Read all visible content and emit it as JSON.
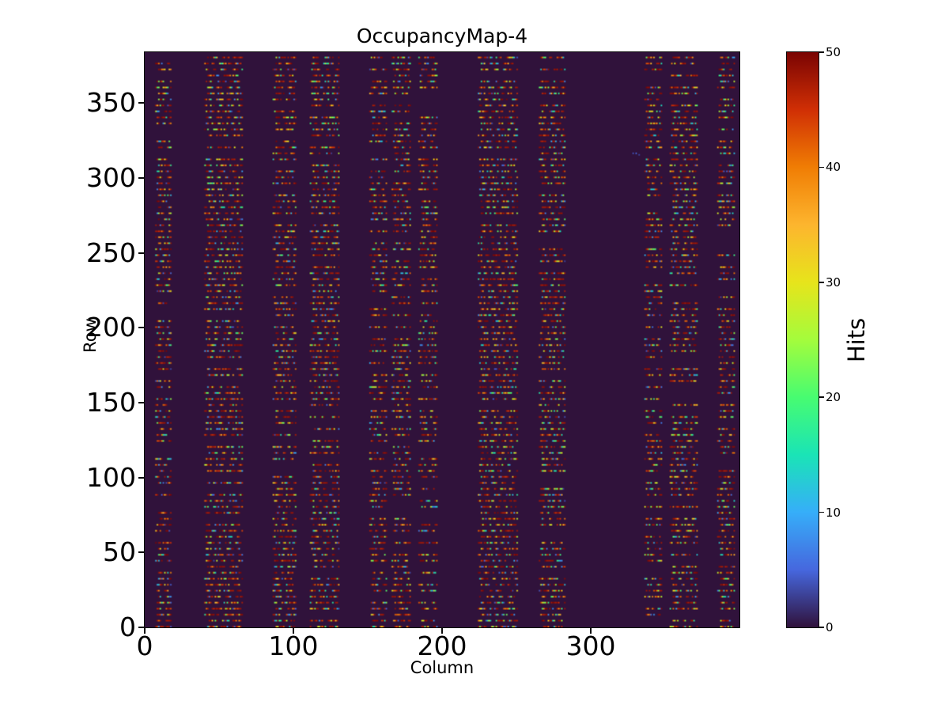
{
  "figure": {
    "background": "#ffffff"
  },
  "chart_data": {
    "type": "heatmap",
    "title": "OccupancyMap-4",
    "xlabel": "Column",
    "ylabel": "Row",
    "colorbar_label": "Hits",
    "x_range": [
      0,
      400
    ],
    "y_range": [
      0,
      384
    ],
    "value_range": [
      0,
      50
    ],
    "x_ticks": [
      0,
      100,
      200,
      300
    ],
    "y_ticks": [
      0,
      50,
      100,
      150,
      200,
      250,
      300,
      350
    ],
    "colorbar_ticks": [
      0,
      10,
      20,
      30,
      40,
      50
    ],
    "grid": {
      "cols": 400,
      "rows": 384
    },
    "legend": "colorbar-right",
    "axes_grid": false,
    "colormap": {
      "name": "turbo",
      "stops": [
        {
          "pos": 0.0,
          "color": "#30123b"
        },
        {
          "pos": 0.1,
          "color": "#4667de"
        },
        {
          "pos": 0.2,
          "color": "#36aef9"
        },
        {
          "pos": 0.3,
          "color": "#1ae4b6"
        },
        {
          "pos": 0.4,
          "color": "#47fc71"
        },
        {
          "pos": 0.5,
          "color": "#a4fc3c"
        },
        {
          "pos": 0.6,
          "color": "#e7e41b"
        },
        {
          "pos": 0.7,
          "color": "#fdb52e"
        },
        {
          "pos": 0.8,
          "color": "#f07d04"
        },
        {
          "pos": 0.9,
          "color": "#d02f05"
        },
        {
          "pos": 1.0,
          "color": "#7a0403"
        }
      ]
    },
    "pattern": {
      "description": "Occupancy hits appear as short horizontal dashes on every 4th pixel row, confined to vertical column bands; most hits saturate near 50 (dark red) with scattered lower values.",
      "row_period": 4,
      "row_phase": 0,
      "bands": [
        {
          "col_start": 7,
          "col_end": 17,
          "density": 0.8
        },
        {
          "col_start": 40,
          "col_end": 65,
          "density": 0.95
        },
        {
          "col_start": 86,
          "col_end": 101,
          "density": 0.85
        },
        {
          "col_start": 111,
          "col_end": 130,
          "density": 0.9
        },
        {
          "col_start": 151,
          "col_end": 162,
          "density": 0.8
        },
        {
          "col_start": 166,
          "col_end": 178,
          "density": 0.8
        },
        {
          "col_start": 184,
          "col_end": 196,
          "density": 0.78
        },
        {
          "col_start": 224,
          "col_end": 250,
          "density": 0.95
        },
        {
          "col_start": 265,
          "col_end": 282,
          "density": 0.85
        },
        {
          "col_start": 336,
          "col_end": 347,
          "density": 0.8
        },
        {
          "col_start": 353,
          "col_end": 371,
          "density": 0.85
        },
        {
          "col_start": 385,
          "col_end": 396,
          "density": 0.8
        }
      ],
      "outliers": [
        {
          "col": 328,
          "row": 316,
          "hits": 4
        },
        {
          "col": 330,
          "row": 316,
          "hits": 5
        },
        {
          "col": 332,
          "row": 315,
          "hits": 3
        }
      ],
      "value_distribution": {
        "saturated_47_50": 0.45,
        "high_38_47": 0.2,
        "uniform_3_38": 0.35
      },
      "dash": {
        "min_len": 2,
        "max_len": 7,
        "min_gap": 1,
        "max_gap": 3,
        "pixel_fill": 0.92
      },
      "seed": 1337
    }
  }
}
